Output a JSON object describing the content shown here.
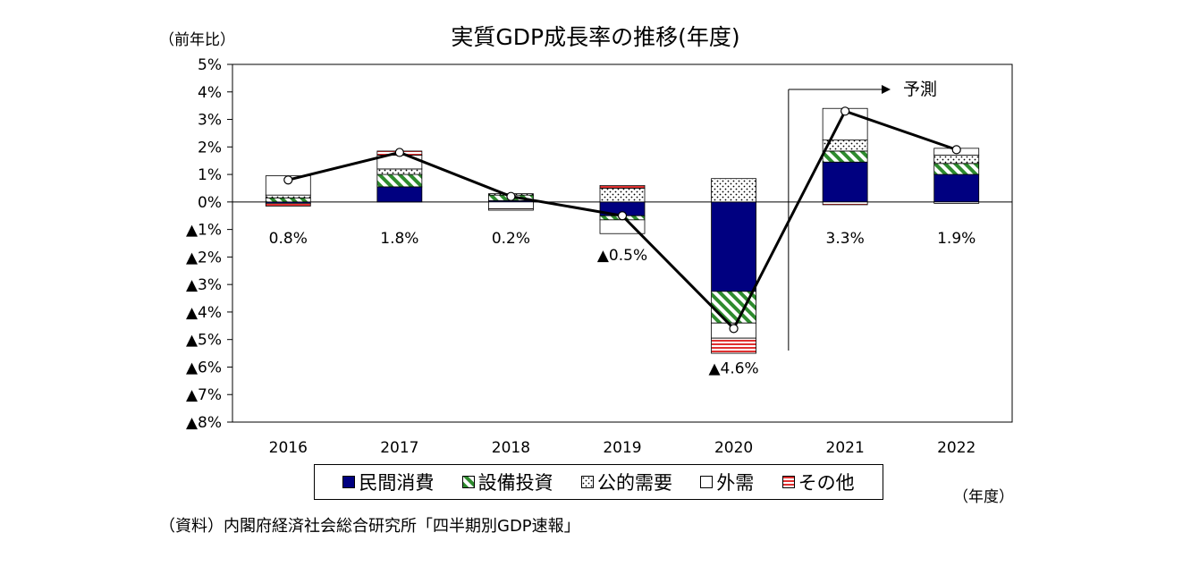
{
  "chart_data": {
    "type": "bar",
    "title": "実質GDP成長率の推移(年度)",
    "y_unit_label": "（前年比）",
    "x_unit_label": "（年度）",
    "source": "（資料）内閣府経済社会総合研究所「四半期別GDP速報」",
    "forecast_label": "予測",
    "forecast_from": "2021",
    "categories": [
      "2016",
      "2017",
      "2018",
      "2019",
      "2020",
      "2021",
      "2022"
    ],
    "ylim": [
      -8,
      5
    ],
    "y_ticks": [
      {
        "value": 5,
        "label": "5%"
      },
      {
        "value": 4,
        "label": "4%"
      },
      {
        "value": 3,
        "label": "3%"
      },
      {
        "value": 2,
        "label": "2%"
      },
      {
        "value": 1,
        "label": "1%"
      },
      {
        "value": 0,
        "label": "0%"
      },
      {
        "value": -1,
        "label": "▲1%"
      },
      {
        "value": -2,
        "label": "▲2%"
      },
      {
        "value": -3,
        "label": "▲3%"
      },
      {
        "value": -4,
        "label": "▲4%"
      },
      {
        "value": -5,
        "label": "▲5%"
      },
      {
        "value": -6,
        "label": "▲6%"
      },
      {
        "value": -7,
        "label": "▲7%"
      },
      {
        "value": -8,
        "label": "▲8%"
      }
    ],
    "grid": false,
    "legend_position": "bottom",
    "series": [
      {
        "name": "民間消費",
        "kind": "bar",
        "pattern": "solid",
        "color": "#000080",
        "values": [
          -0.05,
          0.55,
          0.05,
          -0.5,
          -3.25,
          1.45,
          1.0
        ]
      },
      {
        "name": "設備投資",
        "kind": "bar",
        "pattern": "diagonal",
        "color": "#2e8b2e",
        "values": [
          0.15,
          0.45,
          0.2,
          -0.15,
          -1.15,
          0.4,
          0.4
        ]
      },
      {
        "name": "公的需要",
        "kind": "bar",
        "pattern": "dots",
        "color": "#000000",
        "values": [
          0.1,
          0.2,
          0.05,
          0.5,
          0.85,
          0.4,
          0.3
        ]
      },
      {
        "name": "外需",
        "kind": "bar",
        "pattern": "empty",
        "color": "#000000",
        "values": [
          0.7,
          0.5,
          -0.25,
          -0.5,
          -0.55,
          1.15,
          0.25
        ]
      },
      {
        "name": "その他",
        "kind": "bar",
        "pattern": "hlines",
        "color": "#e03030",
        "values": [
          -0.1,
          0.15,
          -0.05,
          0.1,
          -0.55,
          -0.1,
          -0.05
        ]
      },
      {
        "name": "実質GDP成長率",
        "kind": "line",
        "color": "#000000",
        "values": [
          0.8,
          1.8,
          0.2,
          -0.5,
          -4.6,
          3.3,
          1.9
        ],
        "data_labels": [
          "0.8%",
          "1.8%",
          "0.2%",
          "▲0.5%",
          "▲4.6%",
          "3.3%",
          "1.9%"
        ]
      }
    ]
  }
}
